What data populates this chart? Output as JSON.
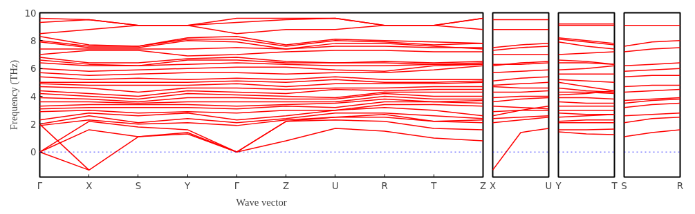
{
  "chart_data": [
    {
      "type": "line",
      "xlabel": "Wave vector",
      "ylabel": "Frequency (THz)",
      "categories": [
        "Γ",
        "X",
        "S",
        "Y",
        "Γ",
        "Z",
        "U",
        "R",
        "T",
        "Z"
      ],
      "ylim": [
        -1.8,
        10
      ],
      "yticks": [
        0,
        2,
        4,
        6,
        8,
        10
      ],
      "ref_lines": [
        {
          "axis": "y",
          "value": 0,
          "color": "#0000ff",
          "line_style": "dotted"
        }
      ],
      "series": [
        {
          "color": "#ff0000",
          "values": [
            0,
            -1.3,
            1.1,
            1.4,
            0,
            0.8,
            1.7,
            1.5,
            1.0,
            0.8
          ]
        },
        {
          "color": "#ff0000",
          "values": [
            2.0,
            -1.3,
            null,
            null,
            null,
            null,
            null,
            null,
            null,
            null
          ]
        },
        {
          "color": "#ff0000",
          "values": [
            0,
            1.6,
            1.1,
            1.3,
            0,
            2.2,
            2.3,
            2.2,
            1.7,
            1.6
          ]
        },
        {
          "color": "#ff0000",
          "values": [
            0,
            2.2,
            1.8,
            1.6,
            0,
            2.2,
            2.5,
            2.5,
            2.2,
            2.1
          ]
        },
        {
          "color": "#ff0000",
          "values": [
            1.9,
            2.3,
            2.0,
            2.1,
            1.9,
            2.3,
            2.5,
            2.7,
            2.2,
            2.3
          ]
        },
        {
          "color": "#ff0000",
          "values": [
            2.0,
            2.6,
            2.1,
            2.4,
            2.1,
            2.4,
            2.8,
            2.8,
            2.6,
            2.4
          ]
        },
        {
          "color": "#ff0000",
          "values": [
            2.3,
            2.8,
            2.6,
            2.8,
            2.3,
            2.6,
            3.0,
            3.2,
            3.0,
            2.6
          ]
        },
        {
          "color": "#ff0000",
          "values": [
            2.9,
            3.0,
            2.8,
            2.9,
            2.8,
            3.0,
            3.0,
            3.4,
            3.4,
            3.3
          ]
        },
        {
          "color": "#ff0000",
          "values": [
            3.1,
            3.2,
            3.2,
            3.2,
            3.1,
            3.3,
            3.2,
            3.6,
            3.6,
            3.5
          ]
        },
        {
          "color": "#ff0000",
          "values": [
            3.3,
            3.4,
            3.4,
            3.4,
            3.3,
            3.4,
            3.5,
            3.8,
            3.6,
            3.7
          ]
        },
        {
          "color": "#ff0000",
          "values": [
            3.6,
            3.6,
            3.5,
            3.6,
            3.6,
            3.6,
            3.6,
            4.0,
            3.8,
            3.8
          ]
        },
        {
          "color": "#ff0000",
          "values": [
            3.9,
            3.8,
            3.6,
            3.9,
            3.9,
            3.8,
            3.8,
            4.2,
            4.0,
            4.0
          ]
        },
        {
          "color": "#ff0000",
          "values": [
            4.2,
            4.0,
            3.8,
            4.2,
            4.1,
            4.0,
            3.9,
            4.3,
            4.3,
            4.3
          ]
        },
        {
          "color": "#ff0000",
          "values": [
            4.4,
            4.2,
            4.0,
            4.4,
            4.3,
            4.2,
            4.5,
            4.4,
            4.5,
            4.5
          ]
        },
        {
          "color": "#ff0000",
          "values": [
            4.7,
            4.6,
            4.3,
            4.6,
            4.6,
            4.5,
            4.6,
            4.6,
            4.7,
            4.7
          ]
        },
        {
          "color": "#ff0000",
          "values": [
            4.9,
            4.8,
            4.8,
            4.8,
            4.9,
            4.7,
            4.9,
            4.9,
            4.9,
            5.0
          ]
        },
        {
          "color": "#ff0000",
          "values": [
            5.0,
            5.0,
            5.0,
            5.0,
            5.1,
            5.0,
            5.2,
            5.0,
            5.0,
            5.1
          ]
        },
        {
          "color": "#ff0000",
          "values": [
            5.4,
            5.2,
            5.3,
            5.2,
            5.3,
            5.2,
            5.4,
            5.2,
            5.2,
            5.2
          ]
        },
        {
          "color": "#ff0000",
          "values": [
            5.7,
            5.5,
            5.6,
            5.7,
            5.7,
            5.6,
            5.7,
            5.7,
            5.9,
            6.2
          ]
        },
        {
          "color": "#ff0000",
          "values": [
            6.0,
            5.8,
            5.9,
            6.0,
            6.1,
            6.1,
            5.9,
            5.8,
            6.2,
            6.3
          ]
        },
        {
          "color": "#ff0000",
          "values": [
            6.4,
            6.2,
            6.2,
            6.3,
            6.4,
            6.3,
            6.2,
            6.2,
            6.3,
            6.3
          ]
        },
        {
          "color": "#ff0000",
          "values": [
            6.6,
            6.3,
            6.2,
            6.6,
            6.6,
            6.4,
            6.4,
            6.4,
            6.3,
            6.4
          ]
        },
        {
          "color": "#ff0000",
          "values": [
            6.8,
            6.4,
            6.4,
            6.7,
            6.8,
            6.5,
            6.4,
            6.5,
            6.4,
            6.5
          ]
        },
        {
          "color": "#ff0000",
          "values": [
            7.0,
            7.3,
            7.3,
            6.9,
            7.0,
            7.2,
            7.3,
            7.3,
            7.2,
            7.2
          ]
        },
        {
          "color": "#ff0000",
          "values": [
            7.4,
            7.4,
            7.4,
            7.4,
            7.5,
            7.4,
            7.6,
            7.6,
            7.5,
            7.5
          ]
        },
        {
          "color": "#ff0000",
          "values": [
            7.9,
            7.5,
            7.5,
            8.0,
            7.9,
            7.4,
            7.8,
            7.8,
            7.6,
            7.4
          ]
        },
        {
          "color": "#ff0000",
          "values": [
            8.0,
            7.6,
            7.6,
            8.1,
            8.1,
            7.6,
            8.0,
            7.9,
            7.7,
            7.8
          ]
        },
        {
          "color": "#ff0000",
          "values": [
            8.3,
            7.7,
            7.6,
            8.2,
            8.3,
            7.7,
            8.1,
            8.0,
            7.9,
            7.8
          ]
        },
        {
          "color": "#ff0000",
          "values": [
            8.5,
            8.8,
            9.1,
            9.1,
            8.5,
            8.8,
            8.8,
            9.1,
            9.1,
            8.8
          ]
        },
        {
          "color": "#ff0000",
          "values": [
            9.3,
            9.5,
            9.1,
            9.1,
            9.3,
            9.5,
            9.6,
            9.1,
            9.1,
            9.6
          ]
        },
        {
          "color": "#ff0000",
          "values": [
            9.6,
            9.5,
            9.1,
            9.1,
            9.6,
            9.6,
            9.6,
            9.1,
            9.1,
            9.6
          ]
        }
      ]
    },
    {
      "type": "line",
      "categories": [
        "X",
        null,
        "U"
      ],
      "ylim": [
        -1.8,
        10
      ],
      "tick_labels": "x",
      "ref_lines": [
        {
          "axis": "y",
          "value": 0,
          "color": "#0000ff",
          "line_style": "dotted"
        }
      ],
      "series": [
        {
          "color": "#ff0000",
          "values": [
            -1.3,
            1.4,
            1.7
          ]
        },
        {
          "color": "#ff0000",
          "values": [
            2.1,
            2.3,
            2.5
          ]
        },
        {
          "color": "#ff0000",
          "values": [
            2.4,
            2.5,
            2.6
          ]
        },
        {
          "color": "#ff0000",
          "values": [
            2.6,
            3.0,
            3.3
          ]
        },
        {
          "color": "#ff0000",
          "values": [
            2.9,
            3.0,
            3.0
          ]
        },
        {
          "color": "#ff0000",
          "values": [
            3.3,
            3.2,
            3.1
          ]
        },
        {
          "color": "#ff0000",
          "values": [
            3.6,
            3.8,
            3.9
          ]
        },
        {
          "color": "#ff0000",
          "values": [
            3.9,
            4.0,
            4.0
          ]
        },
        {
          "color": "#ff0000",
          "values": [
            4.3,
            4.3,
            4.4
          ]
        },
        {
          "color": "#ff0000",
          "values": [
            4.7,
            4.6,
            4.6
          ]
        },
        {
          "color": "#ff0000",
          "values": [
            4.8,
            4.9,
            5.0
          ]
        },
        {
          "color": "#ff0000",
          "values": [
            5.1,
            5.3,
            5.4
          ]
        },
        {
          "color": "#ff0000",
          "values": [
            5.7,
            5.8,
            5.9
          ]
        },
        {
          "color": "#ff0000",
          "values": [
            6.2,
            6.4,
            6.5
          ]
        },
        {
          "color": "#ff0000",
          "values": [
            6.3,
            6.3,
            6.4
          ]
        },
        {
          "color": "#ff0000",
          "values": [
            7.0,
            7.0,
            7.0
          ]
        },
        {
          "color": "#ff0000",
          "values": [
            7.3,
            7.5,
            7.6
          ]
        },
        {
          "color": "#ff0000",
          "values": [
            7.5,
            7.7,
            7.8
          ]
        },
        {
          "color": "#ff0000",
          "values": [
            8.8,
            8.8,
            8.8
          ]
        },
        {
          "color": "#ff0000",
          "values": [
            9.5,
            9.5,
            9.5
          ]
        }
      ]
    },
    {
      "type": "line",
      "categories": [
        "Y",
        null,
        "T"
      ],
      "ylim": [
        -1.8,
        10
      ],
      "tick_labels": "x",
      "ref_lines": [
        {
          "axis": "y",
          "value": 0,
          "color": "#0000ff",
          "line_style": "dotted"
        }
      ],
      "series": [
        {
          "color": "#ff0000",
          "values": [
            1.45,
            1.3,
            1.25
          ]
        },
        {
          "color": "#ff0000",
          "values": [
            1.6,
            1.6,
            1.65
          ]
        },
        {
          "color": "#ff0000",
          "values": [
            2.1,
            2.1,
            2.1
          ]
        },
        {
          "color": "#ff0000",
          "values": [
            2.2,
            2.3,
            2.3
          ]
        },
        {
          "color": "#ff0000",
          "values": [
            2.5,
            2.6,
            2.7
          ]
        },
        {
          "color": "#ff0000",
          "values": [
            2.8,
            2.7,
            2.7
          ]
        },
        {
          "color": "#ff0000",
          "values": [
            3.0,
            3.0,
            3.0
          ]
        },
        {
          "color": "#ff0000",
          "values": [
            3.3,
            3.3,
            3.3
          ]
        },
        {
          "color": "#ff0000",
          "values": [
            3.6,
            3.5,
            3.5
          ]
        },
        {
          "color": "#ff0000",
          "values": [
            3.9,
            3.9,
            3.8
          ]
        },
        {
          "color": "#ff0000",
          "values": [
            4.1,
            4.2,
            4.4
          ]
        },
        {
          "color": "#ff0000",
          "values": [
            4.3,
            4.3,
            4.2
          ]
        },
        {
          "color": "#ff0000",
          "values": [
            4.6,
            4.4,
            4.3
          ]
        },
        {
          "color": "#ff0000",
          "values": [
            5.0,
            4.7,
            4.4
          ]
        },
        {
          "color": "#ff0000",
          "values": [
            5.2,
            5.1,
            5.0
          ]
        },
        {
          "color": "#ff0000",
          "values": [
            5.6,
            5.6,
            5.6
          ]
        },
        {
          "color": "#ff0000",
          "values": [
            5.9,
            6.0,
            6.2
          ]
        },
        {
          "color": "#ff0000",
          "values": [
            6.4,
            6.4,
            6.3
          ]
        },
        {
          "color": "#ff0000",
          "values": [
            6.6,
            6.5,
            6.3
          ]
        },
        {
          "color": "#ff0000",
          "values": [
            7.0,
            7.1,
            7.2
          ]
        },
        {
          "color": "#ff0000",
          "values": [
            7.9,
            7.6,
            7.4
          ]
        },
        {
          "color": "#ff0000",
          "values": [
            8.1,
            7.9,
            7.7
          ]
        },
        {
          "color": "#ff0000",
          "values": [
            8.2,
            8.0,
            7.8
          ]
        },
        {
          "color": "#ff0000",
          "values": [
            9.1,
            9.1,
            9.1
          ]
        },
        {
          "color": "#ff0000",
          "values": [
            9.2,
            9.2,
            9.2
          ]
        }
      ]
    },
    {
      "type": "line",
      "categories": [
        "S",
        null,
        "R"
      ],
      "ylim": [
        -1.8,
        10
      ],
      "tick_labels": "x",
      "ref_lines": [
        {
          "axis": "y",
          "value": 0,
          "color": "#0000ff",
          "line_style": "dotted"
        }
      ],
      "series": [
        {
          "color": "#ff0000",
          "values": [
            1.1,
            1.4,
            1.6
          ]
        },
        {
          "color": "#ff0000",
          "values": [
            2.1,
            2.4,
            2.5
          ]
        },
        {
          "color": "#ff0000",
          "values": [
            2.6,
            2.7,
            2.8
          ]
        },
        {
          "color": "#ff0000",
          "values": [
            3.2,
            3.4,
            3.5
          ]
        },
        {
          "color": "#ff0000",
          "values": [
            3.5,
            3.7,
            3.8
          ]
        },
        {
          "color": "#ff0000",
          "values": [
            3.7,
            3.8,
            3.9
          ]
        },
        {
          "color": "#ff0000",
          "values": [
            4.3,
            4.4,
            4.5
          ]
        },
        {
          "color": "#ff0000",
          "values": [
            4.7,
            4.8,
            4.8
          ]
        },
        {
          "color": "#ff0000",
          "values": [
            5.4,
            5.5,
            5.5
          ]
        },
        {
          "color": "#ff0000",
          "values": [
            5.8,
            5.9,
            6.0
          ]
        },
        {
          "color": "#ff0000",
          "values": [
            6.2,
            6.3,
            6.4
          ]
        },
        {
          "color": "#ff0000",
          "values": [
            7.2,
            7.4,
            7.5
          ]
        },
        {
          "color": "#ff0000",
          "values": [
            7.6,
            7.9,
            8.0
          ]
        },
        {
          "color": "#ff0000",
          "values": [
            9.1,
            9.1,
            9.1
          ]
        }
      ]
    }
  ]
}
